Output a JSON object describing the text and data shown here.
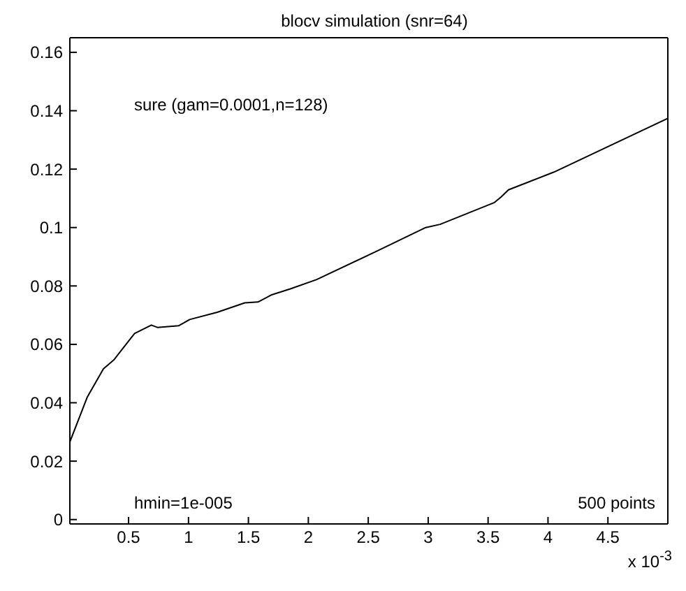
{
  "chart_data": {
    "type": "line",
    "title": "blocv simulation (snr=64)",
    "annotations": [
      "sure (gam=0.0001,n=128)",
      "hmin=1e-005",
      "500 points",
      "x 10$^{-3}$"
    ],
    "x": [
      0.01,
      0.156,
      0.29,
      0.38,
      0.44,
      0.55,
      0.69,
      0.74,
      0.92,
      1.01,
      1.24,
      1.47,
      1.58,
      1.69,
      1.85,
      2.07,
      2.57,
      2.98,
      3.1,
      3.55,
      3.61,
      3.67,
      4.05,
      5
    ],
    "series": [
      {
        "color": "#000000",
        "values": [
          0.0266,
          0.042,
          0.0516,
          0.0548,
          0.058,
          0.0637,
          0.0666,
          0.0658,
          0.0664,
          0.0685,
          0.071,
          0.0742,
          0.0745,
          0.0769,
          0.079,
          0.0822,
          0.0919,
          0.1,
          0.1011,
          0.1085,
          0.1105,
          0.1129,
          0.119,
          0.1374
        ]
      }
    ],
    "xlim": [
      0.01,
      5
    ],
    "xticks": [
      0.5,
      1,
      1.5,
      2,
      2.5,
      3,
      3.5,
      4,
      4.5
    ],
    "ylim": [
      -0.0015,
      0.165
    ],
    "yticks": [
      0,
      0.02,
      0.04,
      0.06,
      0.08,
      0.1,
      0.12,
      0.14,
      0.16
    ],
    "marker": "none",
    "line_style": "solid"
  }
}
